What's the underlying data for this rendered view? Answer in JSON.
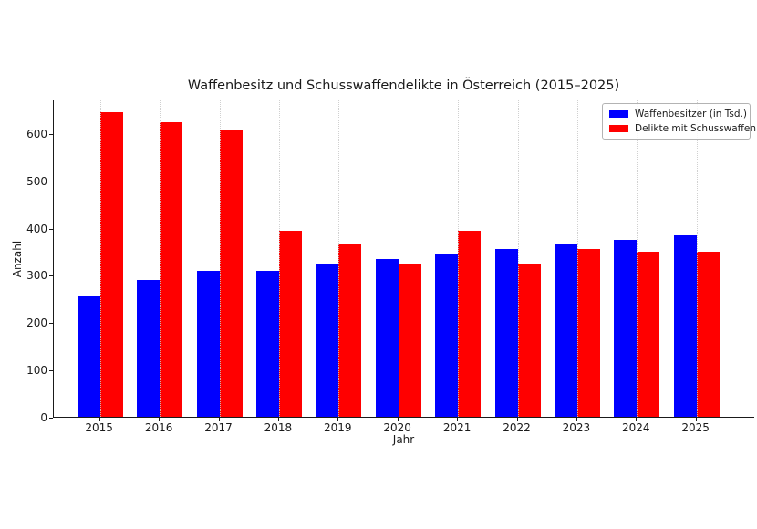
{
  "chart_data": {
    "type": "bar",
    "title": "Waffenbesitz und Schusswaffendelikte in Österreich (2015–2025)",
    "xlabel": "Jahr",
    "ylabel": "Anzahl",
    "categories": [
      "2015",
      "2016",
      "2017",
      "2018",
      "2019",
      "2020",
      "2021",
      "2022",
      "2023",
      "2024",
      "2025"
    ],
    "series": [
      {
        "name": "Waffenbesitzer (in Tsd.)",
        "color": "#0000ff",
        "values": [
          255,
          290,
          310,
          310,
          325,
          335,
          345,
          355,
          365,
          375,
          385
        ]
      },
      {
        "name": "Delikte mit Schusswaffen",
        "color": "#ff0000",
        "values": [
          645,
          625,
          610,
          395,
          365,
          325,
          395,
          325,
          355,
          350,
          350
        ]
      }
    ],
    "yticks": [
      0,
      100,
      200,
      300,
      400,
      500,
      600
    ],
    "ylim": [
      0,
      673
    ],
    "grid": "vertical-dotted",
    "legend_position": "upper-right"
  }
}
